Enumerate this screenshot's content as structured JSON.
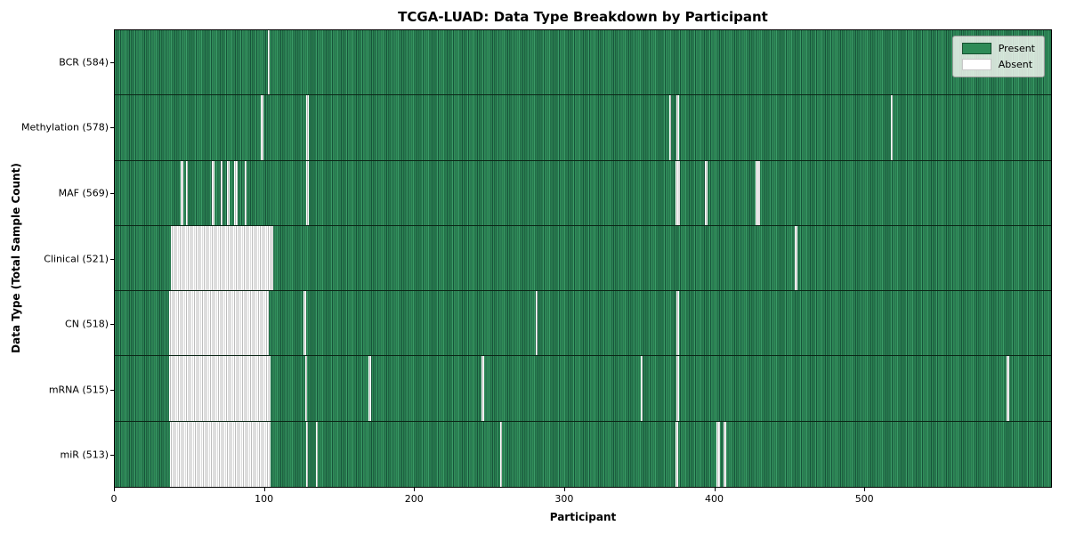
{
  "title": "TCGA-LUAD: Data Type Breakdown by Participant",
  "axes": {
    "x_label": "Participant",
    "y_label": "Data Type (Total Sample Count)"
  },
  "legend": {
    "items": [
      {
        "label": "Present",
        "key": "present",
        "color": "#2e8b57"
      },
      {
        "label": "Absent",
        "key": "absent",
        "color": "#ffffff"
      }
    ],
    "position": "upper right"
  },
  "chart_data": {
    "type": "heatmap",
    "title": "TCGA-LUAD: Data Type Breakdown by Participant",
    "xlabel": "Participant",
    "ylabel": "Data Type (Total Sample Count)",
    "x_ticks": [
      0,
      100,
      200,
      300,
      400,
      500
    ],
    "x_range": [
      0,
      625
    ],
    "grid": false,
    "colors": {
      "present": "#2e8b57",
      "absent": "#ffffff",
      "row_divider": "#0b2616"
    },
    "rows": [
      {
        "data_type": "BCR",
        "label": "BCR (584)",
        "present_count": 584,
        "absent_segments": [
          [
            102,
            103.5
          ]
        ]
      },
      {
        "data_type": "Methylation",
        "label": "Methylation (578)",
        "present_count": 578,
        "absent_segments": [
          [
            97.5,
            99
          ],
          [
            128,
            129.5
          ],
          [
            370,
            371.5
          ],
          [
            375,
            376.5
          ],
          [
            518,
            519.5
          ]
        ]
      },
      {
        "data_type": "MAF",
        "label": "MAF (569)",
        "present_count": 569,
        "absent_segments": [
          [
            44,
            45.5
          ],
          [
            47.5,
            49
          ],
          [
            65,
            66.5
          ],
          [
            70.5,
            72
          ],
          [
            75,
            76.5
          ],
          [
            79.5,
            82
          ],
          [
            86.5,
            88
          ],
          [
            128,
            129.5
          ],
          [
            374.5,
            377
          ],
          [
            394,
            395.5
          ],
          [
            428,
            430.5
          ]
        ]
      },
      {
        "data_type": "Clinical",
        "label": "Clinical (521)",
        "present_count": 521,
        "absent_segments": [
          [
            37.5,
            105.5
          ],
          [
            454,
            455.5
          ]
        ]
      },
      {
        "data_type": "CN",
        "label": "CN (518)",
        "present_count": 518,
        "absent_segments": [
          [
            36.5,
            103
          ],
          [
            126,
            127.5
          ],
          [
            281,
            282.5
          ],
          [
            375,
            376.5
          ]
        ]
      },
      {
        "data_type": "mRNA",
        "label": "mRNA (515)",
        "present_count": 515,
        "absent_segments": [
          [
            36.5,
            104
          ],
          [
            127,
            128.5
          ],
          [
            169.5,
            171
          ],
          [
            245,
            246.5
          ],
          [
            351,
            352.5
          ],
          [
            375,
            376.5
          ],
          [
            595.5,
            597
          ]
        ]
      },
      {
        "data_type": "miR",
        "label": "miR (513)",
        "present_count": 513,
        "absent_segments": [
          [
            37,
            104
          ],
          [
            127.5,
            129
          ],
          [
            134,
            135.5
          ],
          [
            257,
            258.5
          ],
          [
            374.5,
            376
          ],
          [
            401.5,
            404
          ],
          [
            406.5,
            408
          ]
        ]
      }
    ]
  }
}
